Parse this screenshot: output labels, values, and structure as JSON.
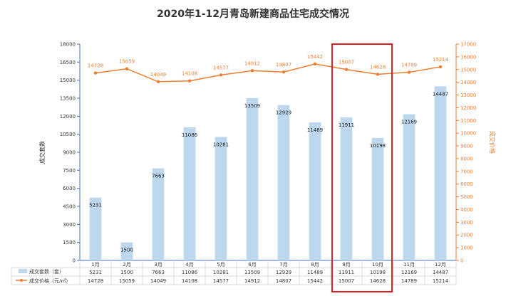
{
  "chart_data": {
    "type": "bar",
    "title": "2020年1-12月青岛新建商品住宅成交情况",
    "categories": [
      "1月",
      "2月",
      "3月",
      "4月",
      "5月",
      "6月",
      "7月",
      "8月",
      "9月",
      "10月",
      "11月",
      "12月"
    ],
    "ylabel": "成交套数",
    "y2label": "成交价格",
    "ylim": [
      0,
      18000
    ],
    "y2lim": [
      0,
      17000
    ],
    "yticks": [
      "0",
      "1500",
      "3000",
      "4500",
      "6000",
      "7500",
      "9000",
      "10500",
      "12000",
      "13500",
      "15000",
      "16500",
      "18000"
    ],
    "y2ticks": [
      "0",
      "1000",
      "2000",
      "3000",
      "4000",
      "5000",
      "6000",
      "7000",
      "8000",
      "9000",
      "10000",
      "11000",
      "12000",
      "13000",
      "14000",
      "15000",
      "16000",
      "17000"
    ],
    "series": [
      {
        "name": "成交套数（套）",
        "type": "bar",
        "axis": "left",
        "values": [
          5231,
          1500,
          7663,
          11086,
          10281,
          13509,
          12929,
          11489,
          11911,
          10198,
          12169,
          14487
        ],
        "labels": [
          "5231",
          "1500",
          "7663",
          "11086",
          "10281",
          "13509",
          "12929",
          "11489",
          "11911",
          "10198",
          "12169",
          "14487"
        ],
        "color": "#bdd7ee"
      },
      {
        "name": "成交价格（元/㎡）",
        "type": "line",
        "axis": "right",
        "values": [
          14728,
          15059,
          14049,
          14108,
          14577,
          14912,
          14807,
          15442,
          15007,
          14628,
          14789,
          15214
        ],
        "labels": [
          "14728",
          "15059",
          "14049",
          "14108",
          "14577",
          "14912",
          "14807",
          "15442",
          "15007",
          "14628",
          "14789",
          "15214"
        ],
        "color": "#ed7d31"
      }
    ],
    "highlight": {
      "categories": [
        "9月",
        "10月"
      ],
      "color": "#e02020"
    },
    "grid": false,
    "legend": "bottom-table",
    "axis_color": "#4472c4"
  }
}
